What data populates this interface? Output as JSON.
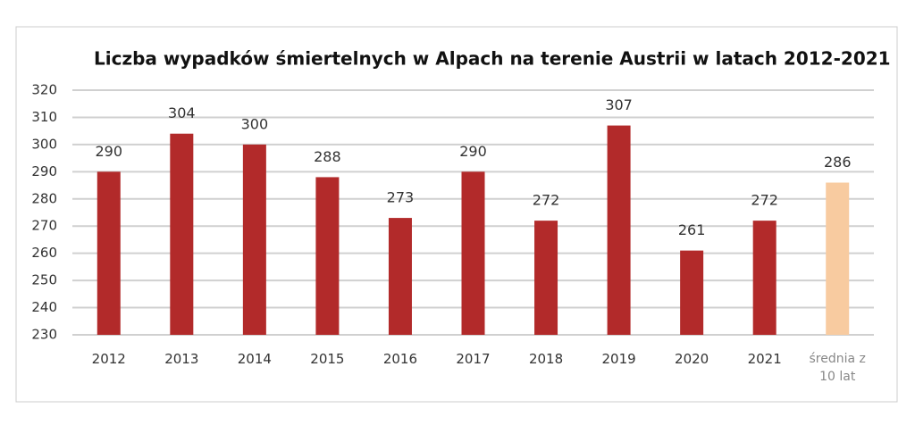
{
  "chart_data": {
    "type": "bar",
    "title": "Liczba wypadków śmiertelnych w Alpach na terenie Austrii w latach 2012-2021",
    "categories": [
      "2012",
      "2013",
      "2014",
      "2015",
      "2016",
      "2017",
      "2018",
      "2019",
      "2020",
      "2021",
      "średnia z 10 lat"
    ],
    "values": [
      290,
      304,
      300,
      288,
      273,
      290,
      272,
      307,
      261,
      272,
      286
    ],
    "colors": [
      "#b22a2a",
      "#b22a2a",
      "#b22a2a",
      "#b22a2a",
      "#b22a2a",
      "#b22a2a",
      "#b22a2a",
      "#b22a2a",
      "#b22a2a",
      "#b22a2a",
      "#f8cba0"
    ],
    "ylim": [
      230,
      320
    ],
    "yticks": [
      230,
      240,
      250,
      260,
      270,
      280,
      290,
      300,
      310,
      320
    ],
    "grid": true
  }
}
